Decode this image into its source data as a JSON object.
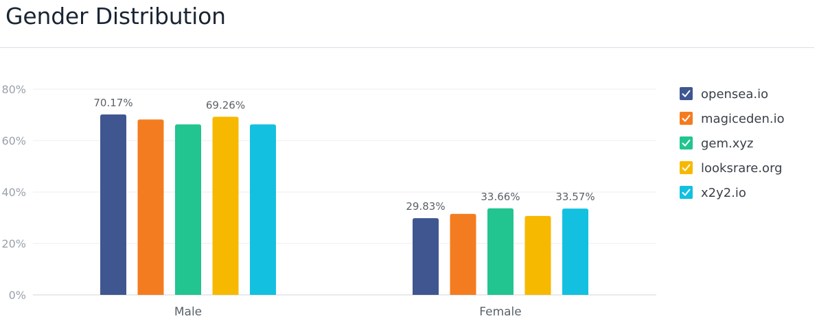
{
  "chart_data": {
    "type": "bar",
    "title": "Gender Distribution",
    "xlabel": "",
    "ylabel": "",
    "categories": [
      "Male",
      "Female"
    ],
    "ylim": [
      0,
      80
    ],
    "yticks": [
      "0%",
      "20%",
      "40%",
      "60%",
      "80%"
    ],
    "grid": true,
    "legend_position": "right",
    "series": [
      {
        "name": "opensea.io",
        "color": "#3f5690",
        "values": [
          70.17,
          29.83
        ],
        "labels": [
          "70.17%",
          "29.83%"
        ]
      },
      {
        "name": "magiceden.io",
        "color": "#f47c20",
        "values": [
          68.2,
          31.5
        ],
        "labels": [
          "",
          ""
        ]
      },
      {
        "name": "gem.xyz",
        "color": "#22c490",
        "values": [
          66.3,
          33.66
        ],
        "labels": [
          "",
          "33.66%"
        ]
      },
      {
        "name": "looksrare.org",
        "color": "#f7b900",
        "values": [
          69.26,
          30.7
        ],
        "labels": [
          "69.26%",
          ""
        ]
      },
      {
        "name": "x2y2.io",
        "color": "#14c0e0",
        "values": [
          66.3,
          33.57
        ],
        "labels": [
          "",
          "33.57%"
        ]
      }
    ]
  }
}
